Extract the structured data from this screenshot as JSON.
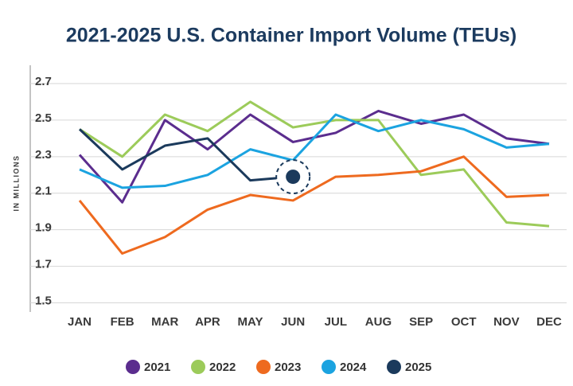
{
  "chart_data": {
    "type": "line",
    "title": "2021-2025 U.S. Container Import Volume (TEUs)",
    "y_label": "IN MILLIONS",
    "categories": [
      "JAN",
      "FEB",
      "MAR",
      "APR",
      "MAY",
      "JUN",
      "JUL",
      "AUG",
      "SEP",
      "OCT",
      "NOV",
      "DEC"
    ],
    "series": [
      {
        "name": "2021",
        "color": "#5b2d8e",
        "values": [
          2.31,
          2.05,
          2.5,
          2.34,
          2.53,
          2.38,
          2.43,
          2.55,
          2.48,
          2.53,
          2.4,
          2.37
        ]
      },
      {
        "name": "2022",
        "color": "#9ccb5a",
        "values": [
          2.45,
          2.3,
          2.53,
          2.44,
          2.6,
          2.46,
          2.5,
          2.5,
          2.2,
          2.23,
          1.94,
          1.92
        ]
      },
      {
        "name": "2023",
        "color": "#ee6a1f",
        "values": [
          2.06,
          1.77,
          1.86,
          2.01,
          2.09,
          2.06,
          2.19,
          2.2,
          2.22,
          2.3,
          2.08,
          2.09
        ]
      },
      {
        "name": "2024",
        "color": "#1ba3e0",
        "values": [
          2.23,
          2.13,
          2.14,
          2.2,
          2.34,
          2.28,
          2.53,
          2.44,
          2.5,
          2.45,
          2.35,
          2.37
        ]
      },
      {
        "name": "2025",
        "color": "#1b3a5c",
        "values": [
          2.45,
          2.23,
          2.36,
          2.4,
          2.17,
          2.19,
          null,
          null,
          null,
          null,
          null,
          null
        ]
      }
    ],
    "ylim": [
      1.45,
      2.8
    ],
    "yticks": [
      1.5,
      1.7,
      1.9,
      2.1,
      2.3,
      2.5,
      2.7
    ],
    "grid": true,
    "legend": "bottom"
  }
}
